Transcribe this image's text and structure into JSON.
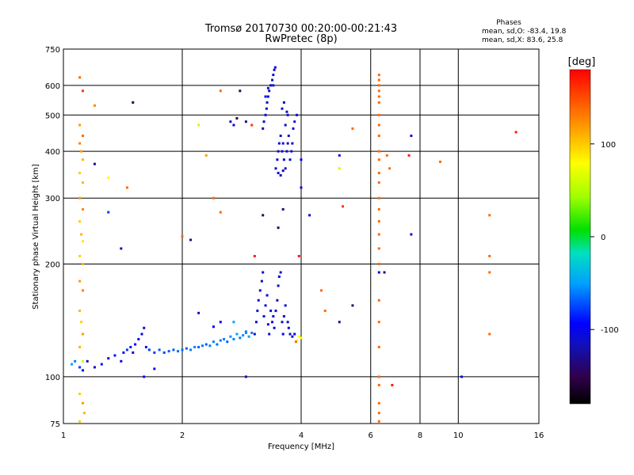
{
  "chart_data": {
    "type": "scatter",
    "title": "Tromsø 20170730 00:20:00-00:21:43",
    "subtitle": "RwPretec (8p)",
    "xlabel": "Frequency [MHz]",
    "ylabel": "Stationary phase Virtual Height [km]",
    "x_scale": "log",
    "y_scale": "log",
    "xlim": [
      1,
      16
    ],
    "ylim": [
      75,
      750
    ],
    "x_ticks": [
      1,
      2,
      4,
      6,
      8,
      10,
      16
    ],
    "x_tick_labels": [
      "1",
      "2",
      "4",
      "6",
      "8",
      "10",
      "16"
    ],
    "x_gridlines": [
      2,
      4,
      6,
      8,
      10
    ],
    "y_ticks": [
      75,
      100,
      200,
      300,
      400,
      500,
      600,
      750
    ],
    "y_tick_labels": [
      "75",
      "100",
      "200",
      "300",
      "400",
      "500",
      "600",
      "750"
    ],
    "y_gridlines": [
      100,
      200,
      300,
      400,
      500,
      600
    ],
    "grid": true,
    "phases": {
      "title": "Phases",
      "line_o": "mean, sd,O: -83.4, 19.8",
      "line_x": "mean, sd,X:  83.6, 25.8"
    },
    "colorbar": {
      "label": "[deg]",
      "range": [
        -180,
        180
      ],
      "ticks": [
        100,
        0,
        -100
      ],
      "tick_labels": [
        "100",
        "0",
        "-100"
      ]
    },
    "points": [
      [
        1.05,
        108,
        -50
      ],
      [
        1.07,
        110,
        -60
      ],
      [
        1.1,
        106,
        -80
      ],
      [
        1.12,
        104,
        -100
      ],
      [
        1.15,
        110,
        -120
      ],
      [
        1.2,
        106,
        -110
      ],
      [
        1.25,
        108,
        -90
      ],
      [
        1.3,
        112,
        -100
      ],
      [
        1.35,
        114,
        -90
      ],
      [
        1.4,
        110,
        -100
      ],
      [
        1.42,
        116,
        -100
      ],
      [
        1.45,
        118,
        -80
      ],
      [
        1.48,
        120,
        -90
      ],
      [
        1.5,
        116,
        -110
      ],
      [
        1.52,
        122,
        -95
      ],
      [
        1.55,
        126,
        -100
      ],
      [
        1.58,
        130,
        -100
      ],
      [
        1.6,
        135,
        -110
      ],
      [
        1.62,
        120,
        -90
      ],
      [
        1.65,
        118,
        -80
      ],
      [
        1.7,
        116,
        -80
      ],
      [
        1.75,
        118,
        -70
      ],
      [
        1.8,
        116,
        -75
      ],
      [
        1.85,
        117,
        -70
      ],
      [
        1.9,
        118,
        -70
      ],
      [
        1.95,
        117,
        -65
      ],
      [
        2.0,
        118,
        -65
      ],
      [
        2.05,
        119,
        -70
      ],
      [
        2.1,
        118,
        -60
      ],
      [
        2.15,
        120,
        -60
      ],
      [
        2.2,
        120,
        -70
      ],
      [
        2.25,
        121,
        -60
      ],
      [
        2.3,
        122,
        -70
      ],
      [
        2.35,
        121,
        -60
      ],
      [
        2.4,
        124,
        -60
      ],
      [
        2.45,
        122,
        -65
      ],
      [
        2.5,
        125,
        -60
      ],
      [
        2.55,
        126,
        -60
      ],
      [
        2.6,
        124,
        -70
      ],
      [
        2.65,
        128,
        -55
      ],
      [
        2.7,
        126,
        -60
      ],
      [
        2.75,
        130,
        -50
      ],
      [
        2.8,
        127,
        -60
      ],
      [
        2.85,
        129,
        -55
      ],
      [
        2.9,
        131,
        -55
      ],
      [
        2.95,
        128,
        -50
      ],
      [
        3.0,
        131,
        -60
      ],
      [
        2.2,
        148,
        -110
      ],
      [
        2.4,
        136,
        -100
      ],
      [
        2.5,
        140,
        -100
      ],
      [
        2.7,
        140,
        -50
      ],
      [
        2.9,
        132,
        -60
      ],
      [
        3.05,
        130,
        -110
      ],
      [
        3.08,
        140,
        -110
      ],
      [
        3.1,
        150,
        -110
      ],
      [
        3.12,
        160,
        -110
      ],
      [
        3.15,
        170,
        -110
      ],
      [
        3.18,
        180,
        -110
      ],
      [
        3.2,
        190,
        -110
      ],
      [
        3.22,
        145,
        -110
      ],
      [
        3.25,
        155,
        -110
      ],
      [
        3.28,
        165,
        -100
      ],
      [
        3.3,
        138,
        -110
      ],
      [
        3.32,
        130,
        -110
      ],
      [
        3.35,
        150,
        -110
      ],
      [
        3.38,
        140,
        -100
      ],
      [
        3.4,
        145,
        -110
      ],
      [
        3.42,
        135,
        -110
      ],
      [
        3.45,
        150,
        -110
      ],
      [
        3.48,
        160,
        -110
      ],
      [
        3.5,
        175,
        -110
      ],
      [
        3.52,
        185,
        -110
      ],
      [
        3.55,
        190,
        -110
      ],
      [
        3.58,
        140,
        -110
      ],
      [
        3.6,
        130,
        -100
      ],
      [
        3.62,
        145,
        -110
      ],
      [
        3.65,
        155,
        -110
      ],
      [
        3.7,
        140,
        -110
      ],
      [
        3.72,
        135,
        -110
      ],
      [
        3.75,
        130,
        -110
      ],
      [
        3.8,
        128,
        -110
      ],
      [
        3.85,
        130,
        -100
      ],
      [
        3.9,
        125,
        80
      ],
      [
        3.95,
        128,
        80
      ],
      [
        4.0,
        127,
        80
      ],
      [
        3.88,
        124,
        140
      ],
      [
        3.2,
        460,
        -110
      ],
      [
        3.22,
        480,
        -110
      ],
      [
        3.25,
        500,
        -110
      ],
      [
        3.27,
        520,
        -110
      ],
      [
        3.28,
        540,
        -110
      ],
      [
        3.3,
        560,
        -110
      ],
      [
        3.32,
        580,
        -110
      ],
      [
        3.35,
        600,
        -110
      ],
      [
        3.38,
        620,
        -110
      ],
      [
        3.4,
        640,
        -110
      ],
      [
        3.42,
        660,
        -110
      ],
      [
        3.44,
        670,
        -110
      ],
      [
        3.25,
        560,
        -100
      ],
      [
        3.3,
        590,
        -120
      ],
      [
        3.4,
        600,
        -110
      ],
      [
        3.45,
        360,
        -110
      ],
      [
        3.48,
        380,
        -110
      ],
      [
        3.5,
        400,
        -110
      ],
      [
        3.52,
        420,
        -110
      ],
      [
        3.55,
        440,
        -110
      ],
      [
        3.58,
        400,
        -110
      ],
      [
        3.6,
        420,
        -110
      ],
      [
        3.62,
        380,
        -110
      ],
      [
        3.65,
        360,
        -110
      ],
      [
        3.68,
        400,
        -100
      ],
      [
        3.7,
        420,
        -110
      ],
      [
        3.72,
        440,
        -110
      ],
      [
        3.75,
        380,
        -110
      ],
      [
        3.78,
        400,
        -110
      ],
      [
        3.8,
        420,
        -110
      ],
      [
        3.82,
        460,
        -110
      ],
      [
        3.85,
        480,
        -110
      ],
      [
        3.5,
        350,
        -110
      ],
      [
        3.55,
        345,
        -110
      ],
      [
        3.6,
        355,
        -120
      ],
      [
        3.65,
        470,
        -110
      ],
      [
        3.7,
        500,
        -110
      ],
      [
        3.58,
        520,
        -110
      ],
      [
        3.62,
        540,
        -110
      ],
      [
        3.68,
        510,
        -110
      ],
      [
        1.1,
        630,
        140
      ],
      [
        1.12,
        580,
        160
      ],
      [
        1.1,
        470,
        120
      ],
      [
        1.12,
        440,
        140
      ],
      [
        1.1,
        420,
        130
      ],
      [
        1.11,
        400,
        120
      ],
      [
        1.12,
        380,
        110
      ],
      [
        1.1,
        350,
        100
      ],
      [
        1.12,
        330,
        110
      ],
      [
        1.1,
        300,
        120
      ],
      [
        1.12,
        280,
        130
      ],
      [
        1.1,
        260,
        100
      ],
      [
        1.11,
        240,
        110
      ],
      [
        1.12,
        230,
        90
      ],
      [
        1.1,
        210,
        100
      ],
      [
        1.12,
        200,
        110
      ],
      [
        1.1,
        180,
        120
      ],
      [
        1.12,
        170,
        130
      ],
      [
        1.1,
        150,
        110
      ],
      [
        1.11,
        140,
        100
      ],
      [
        1.12,
        130,
        120
      ],
      [
        1.1,
        120,
        110
      ],
      [
        1.12,
        110,
        60
      ],
      [
        1.1,
        90,
        100
      ],
      [
        1.12,
        85,
        120
      ],
      [
        1.13,
        80,
        110
      ],
      [
        1.1,
        76,
        100
      ],
      [
        1.2,
        530,
        130
      ],
      [
        1.2,
        370,
        -130
      ],
      [
        1.3,
        275,
        -80
      ],
      [
        1.4,
        220,
        -120
      ],
      [
        1.3,
        340,
        80
      ],
      [
        1.5,
        540,
        -150
      ],
      [
        1.45,
        320,
        140
      ],
      [
        1.6,
        100,
        -100
      ],
      [
        1.7,
        105,
        -100
      ],
      [
        2.0,
        237,
        140
      ],
      [
        2.1,
        232,
        -130
      ],
      [
        2.2,
        470,
        60
      ],
      [
        2.3,
        390,
        120
      ],
      [
        2.4,
        300,
        140
      ],
      [
        2.5,
        275,
        140
      ],
      [
        2.5,
        580,
        140
      ],
      [
        2.65,
        480,
        -120
      ],
      [
        2.75,
        490,
        -150
      ],
      [
        2.8,
        580,
        -150
      ],
      [
        2.7,
        470,
        -100
      ],
      [
        2.9,
        480,
        -130
      ],
      [
        3.0,
        470,
        160
      ],
      [
        3.05,
        210,
        170
      ],
      [
        3.2,
        270,
        -150
      ],
      [
        3.5,
        250,
        -140
      ],
      [
        3.6,
        280,
        -140
      ],
      [
        3.9,
        500,
        -110
      ],
      [
        3.95,
        210,
        170
      ],
      [
        4.0,
        380,
        -100
      ],
      [
        4.0,
        320,
        -110
      ],
      [
        4.2,
        270,
        -110
      ],
      [
        4.5,
        170,
        140
      ],
      [
        4.6,
        150,
        140
      ],
      [
        5.0,
        390,
        -110
      ],
      [
        5.0,
        360,
        60
      ],
      [
        5.1,
        285,
        160
      ],
      [
        5.0,
        140,
        -130
      ],
      [
        5.4,
        155,
        -140
      ],
      [
        5.4,
        460,
        140
      ],
      [
        6.3,
        640,
        140
      ],
      [
        6.3,
        620,
        140
      ],
      [
        6.3,
        600,
        140
      ],
      [
        6.3,
        580,
        140
      ],
      [
        6.3,
        560,
        140
      ],
      [
        6.3,
        540,
        140
      ],
      [
        6.3,
        500,
        140
      ],
      [
        6.3,
        470,
        140
      ],
      [
        6.3,
        440,
        140
      ],
      [
        6.3,
        400,
        140
      ],
      [
        6.3,
        380,
        140
      ],
      [
        6.3,
        350,
        140
      ],
      [
        6.3,
        330,
        140
      ],
      [
        6.3,
        300,
        140
      ],
      [
        6.3,
        280,
        140
      ],
      [
        6.3,
        260,
        140
      ],
      [
        6.3,
        240,
        140
      ],
      [
        6.3,
        220,
        140
      ],
      [
        6.3,
        200,
        140
      ],
      [
        6.3,
        190,
        -110
      ],
      [
        6.3,
        160,
        140
      ],
      [
        6.3,
        140,
        140
      ],
      [
        6.3,
        120,
        140
      ],
      [
        6.3,
        100,
        140
      ],
      [
        6.3,
        95,
        140
      ],
      [
        6.3,
        85,
        140
      ],
      [
        6.3,
        80,
        140
      ],
      [
        6.3,
        76,
        140
      ],
      [
        6.5,
        190,
        -130
      ],
      [
        6.6,
        390,
        140
      ],
      [
        6.7,
        360,
        140
      ],
      [
        6.8,
        95,
        170
      ],
      [
        7.5,
        390,
        170
      ],
      [
        7.6,
        440,
        -110
      ],
      [
        7.6,
        240,
        -110
      ],
      [
        9.0,
        375,
        140
      ],
      [
        10.2,
        100,
        -100
      ],
      [
        12,
        270,
        140
      ],
      [
        12,
        210,
        140
      ],
      [
        12,
        190,
        140
      ],
      [
        12,
        130,
        140
      ],
      [
        14,
        450,
        170
      ],
      [
        2.9,
        100,
        -110
      ]
    ]
  }
}
